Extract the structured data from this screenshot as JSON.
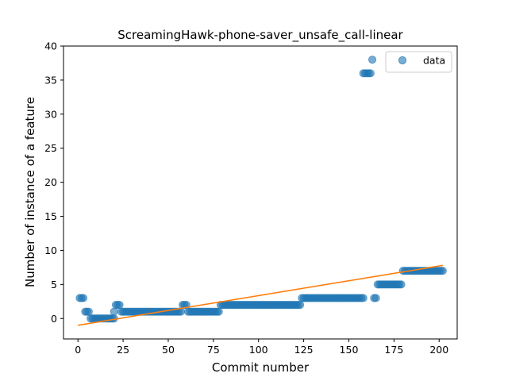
{
  "chart_data": {
    "type": "scatter",
    "title": "ScreamingHawk-phone-saver_unsafe_call-linear",
    "xlabel": "Commit number",
    "ylabel": "Number of instance of a feature",
    "xlim": [
      -8,
      210
    ],
    "ylim": [
      -3,
      40
    ],
    "x_ticks": [
      0,
      25,
      50,
      75,
      100,
      125,
      150,
      175,
      200
    ],
    "y_ticks": [
      0,
      5,
      10,
      15,
      20,
      25,
      30,
      35,
      40
    ],
    "grid": false,
    "legend": {
      "position": "top-right",
      "entries": [
        "data"
      ]
    },
    "colors": {
      "data": "#1f77b4",
      "fit": "#ff7f0e"
    },
    "series": [
      {
        "name": "data",
        "kind": "scatter",
        "segments": [
          {
            "x_start": 1,
            "x_end": 3,
            "y": 3
          },
          {
            "x_start": 4,
            "x_end": 6,
            "y": 1
          },
          {
            "x_start": 7,
            "x_end": 20,
            "y": 0
          },
          {
            "x_start": 20,
            "x_end": 20,
            "y": 1
          },
          {
            "x_start": 21,
            "x_end": 23,
            "y": 2
          },
          {
            "x_start": 24,
            "x_end": 57,
            "y": 1
          },
          {
            "x_start": 58,
            "x_end": 60,
            "y": 2
          },
          {
            "x_start": 61,
            "x_end": 78,
            "y": 1
          },
          {
            "x_start": 79,
            "x_end": 123,
            "y": 2
          },
          {
            "x_start": 124,
            "x_end": 158,
            "y": 3
          },
          {
            "x_start": 158,
            "x_end": 162,
            "y": 36
          },
          {
            "x_start": 163,
            "x_end": 163,
            "y": 38
          },
          {
            "x_start": 164,
            "x_end": 165,
            "y": 3
          },
          {
            "x_start": 166,
            "x_end": 179,
            "y": 5
          },
          {
            "x_start": 180,
            "x_end": 202,
            "y": 7
          }
        ]
      },
      {
        "name": "",
        "kind": "line",
        "x": [
          0,
          202
        ],
        "y": [
          -1.0,
          7.8
        ]
      }
    ]
  }
}
